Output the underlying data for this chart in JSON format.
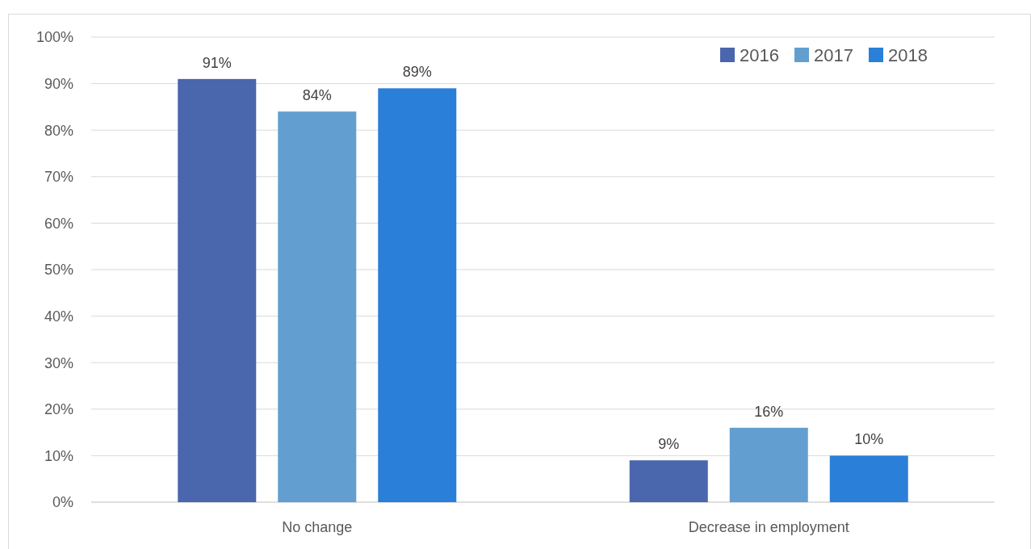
{
  "chart_data": {
    "type": "bar",
    "categories": [
      "No change",
      "Decrease in employment"
    ],
    "series": [
      {
        "name": "2016",
        "color": "#4a66ac",
        "values": [
          91,
          9
        ],
        "value_labels": [
          "91%",
          "9%"
        ]
      },
      {
        "name": "2017",
        "color": "#629fd0",
        "values": [
          84,
          16
        ],
        "value_labels": [
          "84%",
          "16%"
        ]
      },
      {
        "name": "2018",
        "color": "#2a7fd8",
        "values": [
          89,
          10
        ],
        "value_labels": [
          "89%",
          "10%"
        ]
      }
    ],
    "ylim": [
      0,
      100
    ],
    "yticks": [
      {
        "value": 0,
        "label": "0%"
      },
      {
        "value": 10,
        "label": "10%"
      },
      {
        "value": 20,
        "label": "20%"
      },
      {
        "value": 30,
        "label": "30%"
      },
      {
        "value": 40,
        "label": "40%"
      },
      {
        "value": 50,
        "label": "50%"
      },
      {
        "value": 60,
        "label": "60%"
      },
      {
        "value": 70,
        "label": "70%"
      },
      {
        "value": 80,
        "label": "80%"
      },
      {
        "value": 90,
        "label": "90%"
      },
      {
        "value": 100,
        "label": "100%"
      }
    ],
    "grid": "y",
    "legend": "top right"
  }
}
